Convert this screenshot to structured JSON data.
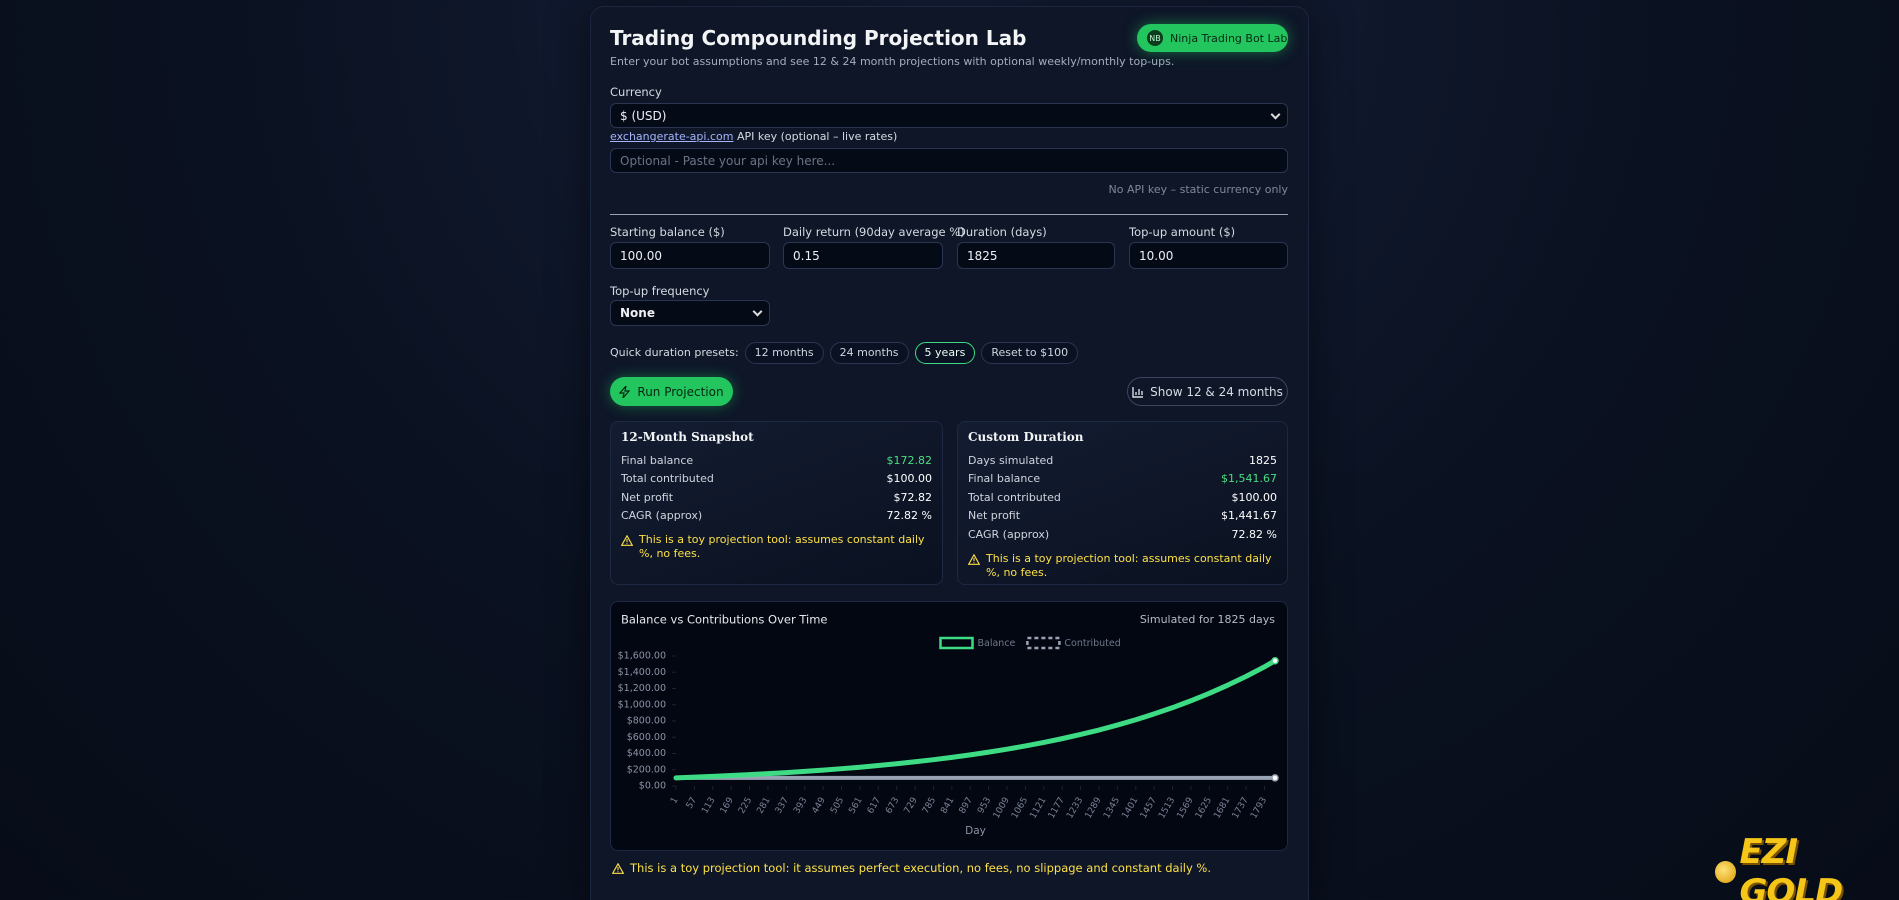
{
  "header": {
    "title": "Trading Compounding Projection Lab",
    "subtitle": "Enter your bot assumptions and see 12 & 24 month projections with optional weekly/monthly top-ups.",
    "badge_icon": "NB",
    "badge": "Ninja Trading Bot Lab"
  },
  "currency": {
    "label": "Currency",
    "value": "$ (USD)"
  },
  "api": {
    "link": "exchangerate-api.com",
    "label": "API key (optional – live rates)",
    "placeholder": "Optional - Paste your api key here...",
    "status": "No API key – static currency only"
  },
  "fields": [
    {
      "label": "Starting balance ($)",
      "value": "100.00"
    },
    {
      "label": "Daily return (90day average %)",
      "value": "0.15"
    },
    {
      "label": "Duration (days)",
      "value": "1825"
    },
    {
      "label": "Top-up amount ($)",
      "value": "10.00"
    }
  ],
  "frequency": {
    "label": "Top-up frequency",
    "value": "None"
  },
  "presets": {
    "label": "Quick duration presets:",
    "options": [
      "12 months",
      "24 months",
      "5 years",
      "Reset to $100"
    ],
    "active": 2
  },
  "buttons": {
    "run": "Run Projection",
    "show": "Show 12 & 24 months"
  },
  "snapshot": {
    "title": "12-Month Snapshot",
    "accent_row": 0,
    "rows": [
      [
        "Final balance",
        "$172.82"
      ],
      [
        "Total contributed",
        "$100.00"
      ],
      [
        "Net profit",
        "$72.82"
      ],
      [
        "CAGR (approx)",
        "72.82 %"
      ]
    ],
    "note": "This is a toy projection tool: assumes constant daily %, no fees."
  },
  "custom": {
    "title": "Custom Duration",
    "accent_row": 1,
    "rows": [
      [
        "Days simulated",
        "1825"
      ],
      [
        "Final balance",
        "$1,541.67"
      ],
      [
        "Total contributed",
        "$100.00"
      ],
      [
        "Net profit",
        "$1,441.67"
      ],
      [
        "CAGR (approx)",
        "72.82 %"
      ]
    ],
    "note": "This is a toy projection tool: assumes constant daily %, no fees."
  },
  "chart_data": {
    "type": "line",
    "title": "Balance vs Contributions Over Time",
    "subtitle": "Simulated for 1825 days",
    "x_label": "Day",
    "x": [
      1,
      57,
      113,
      169,
      225,
      281,
      337,
      393,
      449,
      505,
      561,
      617,
      673,
      729,
      785,
      841,
      897,
      953,
      1009,
      1065,
      1121,
      1177,
      1233,
      1289,
      1345,
      1401,
      1457,
      1513,
      1569,
      1625,
      1681,
      1737,
      1793,
      1825
    ],
    "series": [
      {
        "name": "Balance",
        "color": "#3ddc84",
        "values": [
          100,
          109,
          118,
          129,
          140,
          152,
          165,
          180,
          196,
          213,
          231,
          252,
          274,
          298,
          324,
          352,
          383,
          417,
          453,
          493,
          536,
          583,
          634,
          689,
          750,
          815,
          887,
          964,
          1049,
          1141,
          1241,
          1349,
          1467,
          1541.67
        ]
      },
      {
        "name": "Contributed",
        "color": "#9aa3b5",
        "dashed": true,
        "values": [
          100,
          100,
          100,
          100,
          100,
          100,
          100,
          100,
          100,
          100,
          100,
          100,
          100,
          100,
          100,
          100,
          100,
          100,
          100,
          100,
          100,
          100,
          100,
          100,
          100,
          100,
          100,
          100,
          100,
          100,
          100,
          100,
          100,
          100
        ]
      }
    ],
    "xlim": [
      1,
      1825
    ],
    "xticks": [
      1,
      57,
      113,
      169,
      225,
      281,
      337,
      393,
      449,
      505,
      561,
      617,
      673,
      729,
      785,
      841,
      897,
      953,
      1009,
      1065,
      1121,
      1177,
      1233,
      1289,
      1345,
      1401,
      1457,
      1513,
      1569,
      1625,
      1681,
      1737,
      1793
    ],
    "ylim": [
      0,
      1600
    ],
    "yticks": [
      {
        "value": 0,
        "label": "$0.00"
      },
      {
        "value": 200,
        "label": "$200.00"
      },
      {
        "value": 400,
        "label": "$400.00"
      },
      {
        "value": 600,
        "label": "$600.00"
      },
      {
        "value": 800,
        "label": "$800.00"
      },
      {
        "value": 1000,
        "label": "$1,000.00"
      },
      {
        "value": 1200,
        "label": "$1,200.00"
      },
      {
        "value": 1400,
        "label": "$1,400.00"
      },
      {
        "value": 1600,
        "label": "$1,600.00"
      }
    ],
    "legend": "top"
  },
  "footer_note": "This is a toy projection tool: it assumes perfect execution, no fees, no slippage and constant daily %.",
  "logo": "EZI GOLD"
}
